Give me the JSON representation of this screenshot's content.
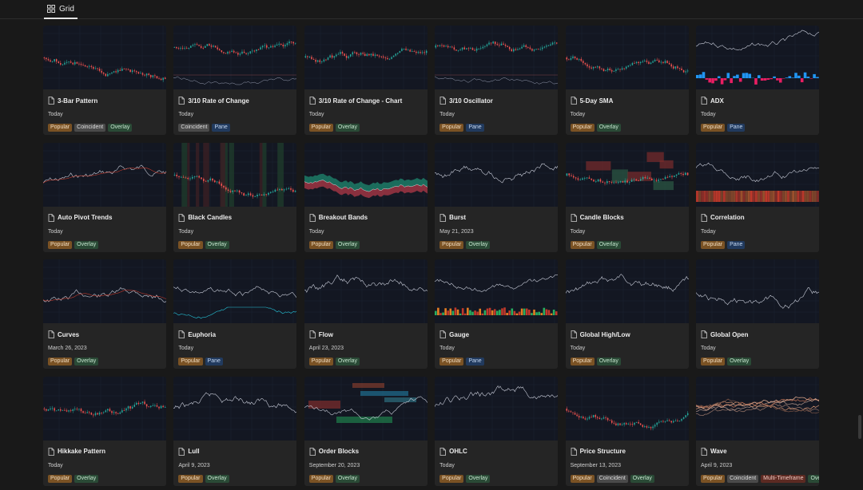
{
  "view": {
    "tab_label": "Grid",
    "tab_icon": "grid-icon"
  },
  "tag_colors": {
    "Popular": "#7a5224",
    "Overlay": "#2a4a36",
    "Pane": "#213a5e",
    "Coincident": "#4a4a4a",
    "Multi-Timeframe": "#5c2a22"
  },
  "cards": [
    {
      "title": "3-Bar Pattern",
      "date": "Today",
      "tags": [
        "Popular",
        "Coincident",
        "Overlay"
      ],
      "thumb": "candles",
      "seed": 1
    },
    {
      "title": "3/10 Rate of Change",
      "date": "Today",
      "tags": [
        "Coincident",
        "Pane"
      ],
      "thumb": "candles-pane",
      "seed": 2
    },
    {
      "title": "3/10 Rate of Change - Chart",
      "date": "Today",
      "tags": [
        "Popular",
        "Overlay"
      ],
      "thumb": "candles",
      "seed": 3
    },
    {
      "title": "3/10 Oscillator",
      "date": "Today",
      "tags": [
        "Popular",
        "Pane"
      ],
      "thumb": "candles-pane",
      "seed": 4
    },
    {
      "title": "5-Day SMA",
      "date": "Today",
      "tags": [
        "Popular",
        "Overlay"
      ],
      "thumb": "candles",
      "seed": 5
    },
    {
      "title": "ADX",
      "date": "Today",
      "tags": [
        "Popular",
        "Pane"
      ],
      "thumb": "adx",
      "seed": 6
    },
    {
      "title": "Auto Pivot Trends",
      "date": "Today",
      "tags": [
        "Popular",
        "Overlay"
      ],
      "thumb": "line-ma",
      "seed": 7
    },
    {
      "title": "Black Candles",
      "date": "Today",
      "tags": [
        "Popular",
        "Overlay"
      ],
      "thumb": "stripes",
      "seed": 8
    },
    {
      "title": "Breakout Bands",
      "date": "Today",
      "tags": [
        "Popular",
        "Overlay"
      ],
      "thumb": "bands",
      "seed": 9
    },
    {
      "title": "Burst",
      "date": "May 21, 2023",
      "tags": [
        "Popular",
        "Overlay"
      ],
      "thumb": "line",
      "seed": 10
    },
    {
      "title": "Candle Blocks",
      "date": "Today",
      "tags": [
        "Popular",
        "Overlay"
      ],
      "thumb": "blocks",
      "seed": 11
    },
    {
      "title": "Correlation",
      "date": "Today",
      "tags": [
        "Popular",
        "Pane"
      ],
      "thumb": "corr",
      "seed": 12
    },
    {
      "title": "Curves",
      "date": "March 26, 2023",
      "tags": [
        "Popular",
        "Overlay"
      ],
      "thumb": "line-ma",
      "seed": 13
    },
    {
      "title": "Euphoria",
      "date": "Today",
      "tags": [
        "Popular",
        "Pane"
      ],
      "thumb": "euphoria",
      "seed": 14
    },
    {
      "title": "Flow",
      "date": "April 23, 2023",
      "tags": [
        "Popular",
        "Overlay"
      ],
      "thumb": "line",
      "seed": 15
    },
    {
      "title": "Gauge",
      "date": "Today",
      "tags": [
        "Popular",
        "Pane"
      ],
      "thumb": "gauge",
      "seed": 16
    },
    {
      "title": "Global High/Low",
      "date": "Today",
      "tags": [
        "Popular",
        "Overlay"
      ],
      "thumb": "line",
      "seed": 17
    },
    {
      "title": "Global Open",
      "date": "Today",
      "tags": [
        "Popular",
        "Overlay"
      ],
      "thumb": "line",
      "seed": 18
    },
    {
      "title": "Hikkake Pattern",
      "date": "Today",
      "tags": [
        "Popular",
        "Overlay"
      ],
      "thumb": "candles",
      "seed": 19
    },
    {
      "title": "Lull",
      "date": "April 9, 2023",
      "tags": [
        "Popular",
        "Overlay"
      ],
      "thumb": "line",
      "seed": 20
    },
    {
      "title": "Order Blocks",
      "date": "September 20, 2023",
      "tags": [
        "Popular",
        "Overlay"
      ],
      "thumb": "orderblocks",
      "seed": 21
    },
    {
      "title": "OHLC",
      "date": "Today",
      "tags": [
        "Popular",
        "Overlay"
      ],
      "thumb": "line",
      "seed": 22
    },
    {
      "title": "Price Structure",
      "date": "September 13, 2023",
      "tags": [
        "Popular",
        "Coincident",
        "Overlay"
      ],
      "thumb": "candles",
      "seed": 23
    },
    {
      "title": "Wave",
      "date": "April 9, 2023",
      "tags": [
        "Popular",
        "Coincident",
        "Multi-Timeframe",
        "Overlay"
      ],
      "thumb": "wave",
      "seed": 24
    }
  ]
}
